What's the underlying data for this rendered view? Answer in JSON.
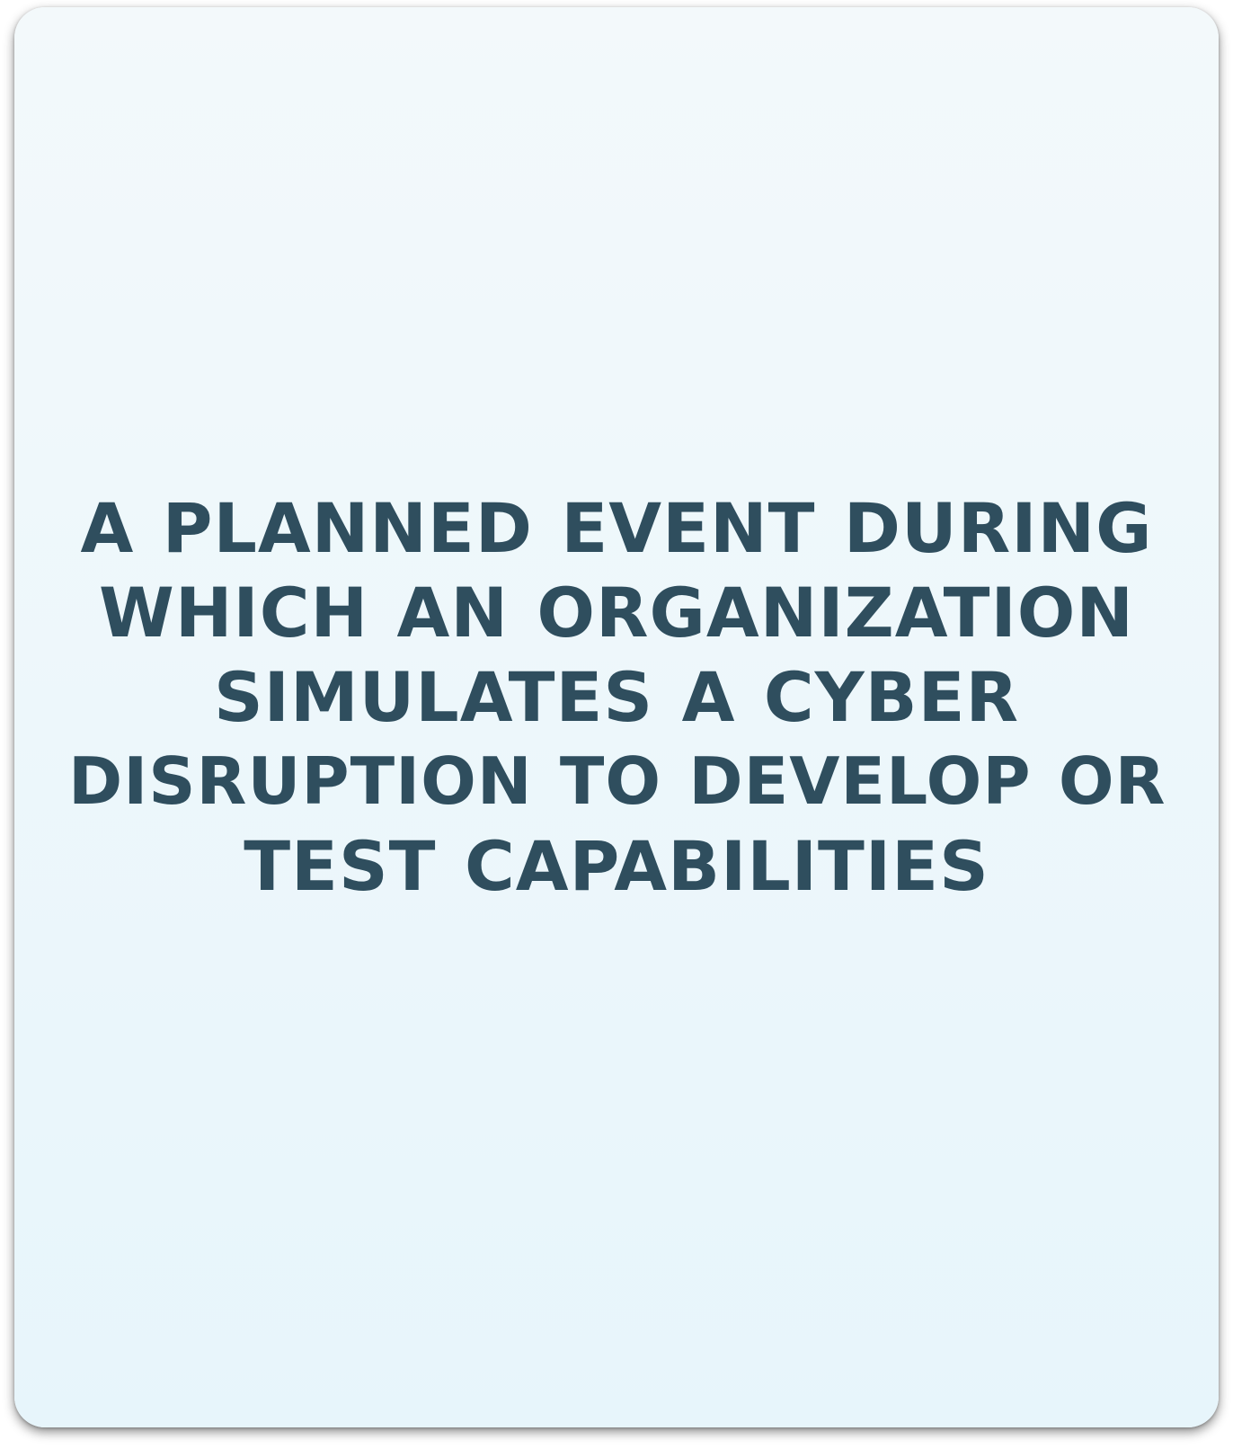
{
  "card": {
    "lines": [
      "A PLANNED EVENT DURING",
      "WHICH AN ORGANIZATION",
      "SIMULATES A CYBER",
      "DISRUPTION TO DEVELOP OR",
      "TEST CAPABILITIES"
    ]
  },
  "colors": {
    "text": "#2f4e5e",
    "card_top": "#f3f9fb",
    "card_bottom": "#e7f5fb"
  }
}
